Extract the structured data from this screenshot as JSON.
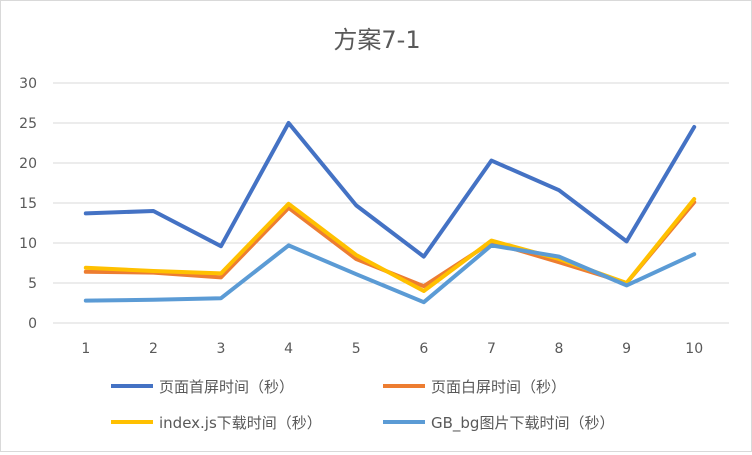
{
  "chart_data": {
    "type": "line",
    "title": "方案7-1",
    "xlabel": "",
    "ylabel": "",
    "x": [
      "1",
      "2",
      "3",
      "4",
      "5",
      "6",
      "7",
      "8",
      "9",
      "10"
    ],
    "ylim": [
      0,
      30
    ],
    "yticks": [
      "0",
      "5",
      "10",
      "15",
      "20",
      "25",
      "30"
    ],
    "grid": true,
    "legend_position": "bottom",
    "series": [
      {
        "name": "页面首屏时间（秒）",
        "color": "#4472C4",
        "values": [
          13.7,
          14.0,
          9.6,
          25.0,
          14.7,
          8.3,
          20.3,
          16.6,
          10.2,
          24.5
        ]
      },
      {
        "name": "页面白屏时间（秒）",
        "color": "#ED7D31",
        "values": [
          6.4,
          6.3,
          5.7,
          14.4,
          8.0,
          4.6,
          10.1,
          7.6,
          5.0,
          15.1
        ]
      },
      {
        "name": "index.js下载时间（秒）",
        "color": "#FFC000",
        "values": [
          6.9,
          6.5,
          6.2,
          14.9,
          8.5,
          4.0,
          10.3,
          8.0,
          5.0,
          15.5
        ]
      },
      {
        "name": "GB_bg图片下载时间（秒）",
        "color": "#5B9BD5",
        "values": [
          2.8,
          2.9,
          3.1,
          9.7,
          6.1,
          2.6,
          9.7,
          8.3,
          4.7,
          8.6
        ]
      }
    ]
  }
}
